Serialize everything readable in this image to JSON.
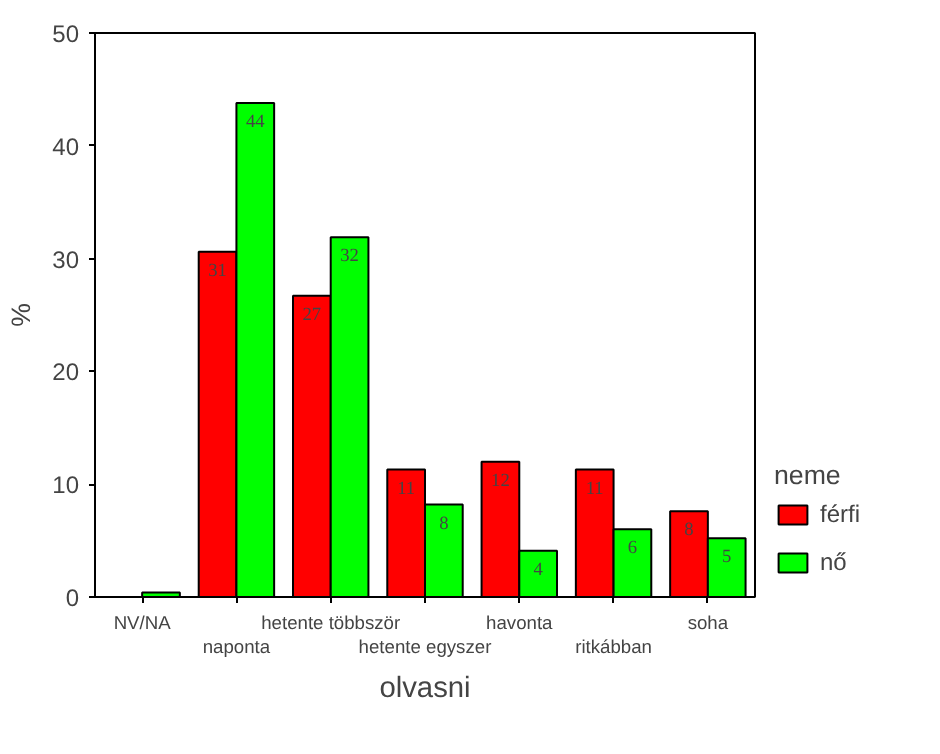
{
  "chart_data": {
    "type": "bar",
    "xlabel": "olvasni",
    "ylabel": "%",
    "legend_title": "neme",
    "categories": [
      "NV/NA",
      "naponta",
      "hetente többször",
      "hetente egyszer",
      "havonta",
      "ritkábban",
      "soha"
    ],
    "series": [
      {
        "name": "férfi",
        "color": "#ff0000",
        "values": [
          null,
          30.6,
          26.7,
          11.3,
          12.0,
          11.3,
          7.6
        ],
        "value_labels": [
          null,
          "31",
          "27",
          "11",
          "12",
          "11",
          "8"
        ]
      },
      {
        "name": "nő",
        "color": "#00ff00",
        "values": [
          0.4,
          43.8,
          31.9,
          8.2,
          4.1,
          6.0,
          5.2
        ],
        "value_labels": [
          null,
          "44",
          "32",
          "8",
          "4",
          "6",
          "5"
        ]
      }
    ],
    "ylim": [
      0,
      50
    ],
    "yticks": [
      0,
      10,
      20,
      30,
      40,
      50
    ],
    "grid": false,
    "legend": "right"
  }
}
